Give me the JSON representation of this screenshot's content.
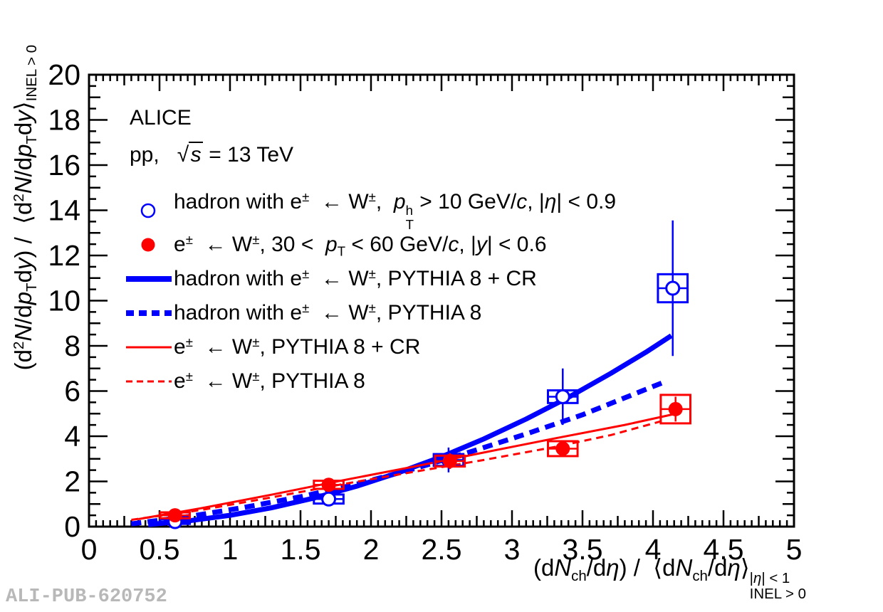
{
  "watermark": "ALI-PUB-620752",
  "chart_data": {
    "type": "scatter",
    "annotations": [
      "ALICE",
      "pp,   √{*s*} = 13 TeV"
    ],
    "xlabel_rich": "(d*N*_{ch}/d*η*) /  ⟨d*N*_{ch}/d*η*⟩^{|*η*| < 1}_{INEL > 0}",
    "ylabel_rich": "(d^{2}*N*/d*p*_{T}d*y*) /  ⟨d^{2}*N*/d*p*_{T}d*y*⟩_{INEL > 0}",
    "xlim": [
      0,
      5
    ],
    "ylim": [
      0,
      20
    ],
    "grid": false,
    "legend_position": "top-left",
    "x_ticks": {
      "major_step": 0.5,
      "medium_step": 0.25,
      "minor_step": 0.05,
      "labels": [
        "0",
        "0.5",
        "1",
        "1.5",
        "2",
        "2.5",
        "3",
        "3.5",
        "4",
        "4.5",
        "5"
      ]
    },
    "y_ticks": {
      "major_step": 2,
      "medium_step": 1,
      "minor_step": 0.5,
      "labels": [
        "0",
        "2",
        "4",
        "6",
        "8",
        "10",
        "12",
        "14",
        "16",
        "18",
        "20"
      ]
    },
    "colors": {
      "blue": "#0000ff",
      "red": "#ff0000",
      "axis": "#000000",
      "watermark": "#b8b8b8"
    },
    "series": [
      {
        "id": "hadron-w-data",
        "label": "hadron with e^{±}  ← W^{±},  *p*^{h}_{T} > 10 GeV/*c*, |*η*| < 0.9",
        "kind": "points",
        "marker": "open-circle",
        "color": "blue",
        "ex": 0.105,
        "points": [
          {
            "x": 0.61,
            "y": 0.22,
            "stat": 0.15,
            "syst": 0.1
          },
          {
            "x": 1.7,
            "y": 1.22,
            "stat": 0.3,
            "syst": 0.2
          },
          {
            "x": 2.55,
            "y": 2.95,
            "stat": 0.55,
            "syst": 0.26
          },
          {
            "x": 3.36,
            "y": 5.75,
            "stat": 1.25,
            "syst": 0.28
          },
          {
            "x": 4.14,
            "y": 10.55,
            "stat": 3.0,
            "syst": 0.62
          }
        ]
      },
      {
        "id": "electron-w-data",
        "label": "e^{±}  ← W^{±}, 30 <  *p*_{T} < 60 GeV/*c*, |*y*| < 0.6",
        "kind": "points",
        "marker": "filled-circle",
        "color": "red",
        "ex": 0.105,
        "points": [
          {
            "x": 0.61,
            "y": 0.5,
            "stat": 0.1,
            "syst": 0.13
          },
          {
            "x": 1.7,
            "y": 1.85,
            "stat": 0.2,
            "syst": 0.18
          },
          {
            "x": 2.56,
            "y": 2.9,
            "stat": 0.35,
            "syst": 0.24
          },
          {
            "x": 3.36,
            "y": 3.45,
            "stat": 0.3,
            "syst": 0.33
          },
          {
            "x": 4.16,
            "y": 5.2,
            "stat": 0.55,
            "syst": 0.63
          }
        ]
      },
      {
        "id": "hadron-w-pythia8-cr",
        "label": "hadron with e^{±}  ← W^{±}, PYTHIA 8 + CR",
        "kind": "curve",
        "style": "solid",
        "width": 7,
        "color": "blue",
        "points": [
          [
            0.42,
            0.09
          ],
          [
            0.7,
            0.25
          ],
          [
            1.0,
            0.5
          ],
          [
            1.3,
            0.84
          ],
          [
            1.6,
            1.27
          ],
          [
            1.9,
            1.79
          ],
          [
            2.2,
            2.4
          ],
          [
            2.5,
            3.09
          ],
          [
            2.8,
            3.88
          ],
          [
            3.1,
            4.76
          ],
          [
            3.4,
            5.72
          ],
          [
            3.7,
            6.78
          ],
          [
            3.95,
            7.72
          ],
          [
            4.13,
            8.45
          ]
        ]
      },
      {
        "id": "hadron-w-pythia8",
        "label": "hadron with e^{±}  ← W^{±}, PYTHIA 8",
        "kind": "curve",
        "style": "dashed",
        "width": 7,
        "color": "blue",
        "points": [
          [
            0.3,
            0.12
          ],
          [
            0.7,
            0.44
          ],
          [
            1.1,
            0.85
          ],
          [
            1.5,
            1.32
          ],
          [
            1.9,
            1.88
          ],
          [
            2.3,
            2.55
          ],
          [
            2.7,
            3.3
          ],
          [
            3.1,
            4.1
          ],
          [
            3.5,
            4.95
          ],
          [
            3.8,
            5.7
          ],
          [
            4.1,
            6.45
          ]
        ]
      },
      {
        "id": "electron-w-pythia8-cr",
        "label": "e^{±}  ← W^{±}, PYTHIA 8 + CR",
        "kind": "curve",
        "style": "solid",
        "width": 3,
        "color": "red",
        "points": [
          [
            0.35,
            0.33
          ],
          [
            0.8,
            0.82
          ],
          [
            1.3,
            1.42
          ],
          [
            1.8,
            2.05
          ],
          [
            2.3,
            2.65
          ],
          [
            2.8,
            3.28
          ],
          [
            3.3,
            3.9
          ],
          [
            3.8,
            4.5
          ],
          [
            4.15,
            4.98
          ]
        ]
      },
      {
        "id": "electron-w-pythia8",
        "label": "e^{±}  ← W^{±}, PYTHIA 8",
        "kind": "curve",
        "style": "dashed",
        "width": 3,
        "color": "red",
        "points": [
          [
            0.3,
            0.3
          ],
          [
            0.8,
            0.74
          ],
          [
            1.3,
            1.3
          ],
          [
            1.8,
            1.88
          ],
          [
            2.3,
            2.42
          ],
          [
            2.8,
            2.95
          ],
          [
            3.3,
            3.52
          ],
          [
            3.7,
            4.05
          ],
          [
            4.05,
            4.65
          ]
        ]
      }
    ]
  }
}
